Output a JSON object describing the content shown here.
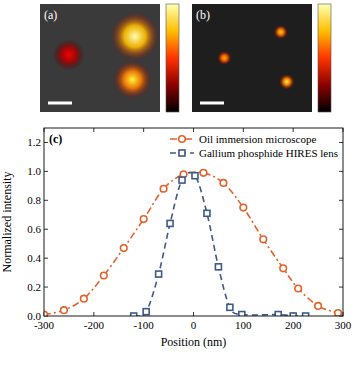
{
  "images": [
    {
      "label": "(a)",
      "spots": [
        {
          "x": 0.24,
          "y": 0.47,
          "size": 0.13,
          "intensity": 0.42
        },
        {
          "x": 0.79,
          "y": 0.3,
          "size": 0.2,
          "intensity": 1.0
        },
        {
          "x": 0.77,
          "y": 0.7,
          "size": 0.16,
          "intensity": 0.85
        }
      ]
    },
    {
      "label": "(b)",
      "spots": [
        {
          "x": 0.27,
          "y": 0.5,
          "size": 0.06,
          "intensity": 0.75
        },
        {
          "x": 0.74,
          "y": 0.26,
          "size": 0.06,
          "intensity": 0.8
        },
        {
          "x": 0.79,
          "y": 0.72,
          "size": 0.065,
          "intensity": 0.85
        }
      ]
    }
  ],
  "chart_data": {
    "type": "line",
    "panel_label": "(c)",
    "x_label": "Position (nm)",
    "y_label": "Normalized intensity",
    "xlim": [
      -300,
      300
    ],
    "ylim": [
      0,
      1.3
    ],
    "xticks": [
      -300,
      -200,
      -100,
      0,
      100,
      200,
      300
    ],
    "yticks": [
      {
        "value": 0,
        "label": "0.0"
      },
      0.2,
      0.4,
      0.6,
      0.8,
      {
        "value": 1,
        "label": "1.0"
      },
      1.2
    ],
    "grid": false,
    "legend": "upper right",
    "series": [
      {
        "name": "Oil immersion microscope",
        "color": "#e2622a",
        "marker": "circle",
        "line_style": "dashdot",
        "x": [
          -300,
          -260,
          -220,
          -180,
          -140,
          -100,
          -60,
          -20,
          20,
          60,
          100,
          140,
          180,
          210,
          250,
          290
        ],
        "values": [
          0.01,
          0.04,
          0.12,
          0.28,
          0.47,
          0.67,
          0.88,
          0.98,
          0.99,
          0.92,
          0.75,
          0.53,
          0.33,
          0.19,
          0.07,
          0.02
        ]
      },
      {
        "name": "Gallium phosphide HIRES lens",
        "color": "#3d5a8a",
        "marker": "square",
        "line_style": "dashed",
        "x": [
          -120,
          -95,
          -70,
          -47,
          -23,
          3,
          27,
          50,
          73,
          97,
          170,
          200,
          225
        ],
        "values": [
          0.0,
          0.03,
          0.29,
          0.64,
          0.94,
          0.97,
          0.71,
          0.34,
          0.06,
          0.01,
          0.01,
          0.0,
          0.0
        ]
      }
    ]
  }
}
